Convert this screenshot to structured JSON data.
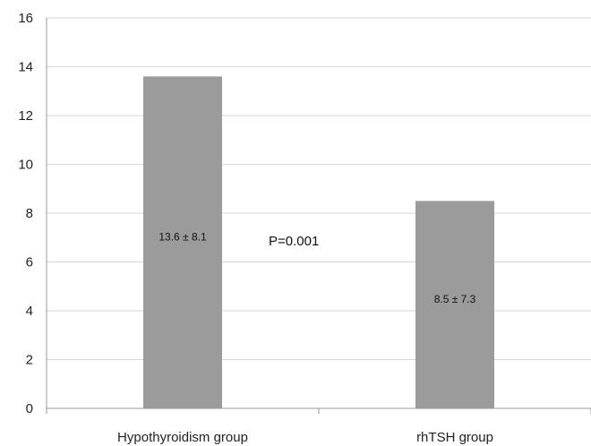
{
  "chart_data": {
    "type": "bar",
    "categories": [
      "Hypothyroidism group",
      "rhTSH group"
    ],
    "values": [
      13.6,
      8.5
    ],
    "bar_labels": [
      "13.6 ± 8.1",
      "8.5 ± 7.3"
    ],
    "annotation": "P=0.001",
    "title": "",
    "xlabel": "",
    "ylabel": "",
    "ylim": [
      0,
      16
    ],
    "yticks": [
      0,
      2,
      4,
      6,
      8,
      10,
      12,
      14,
      16
    ],
    "grid": true,
    "legend": "none",
    "bar_color": "#9b9b9b"
  }
}
